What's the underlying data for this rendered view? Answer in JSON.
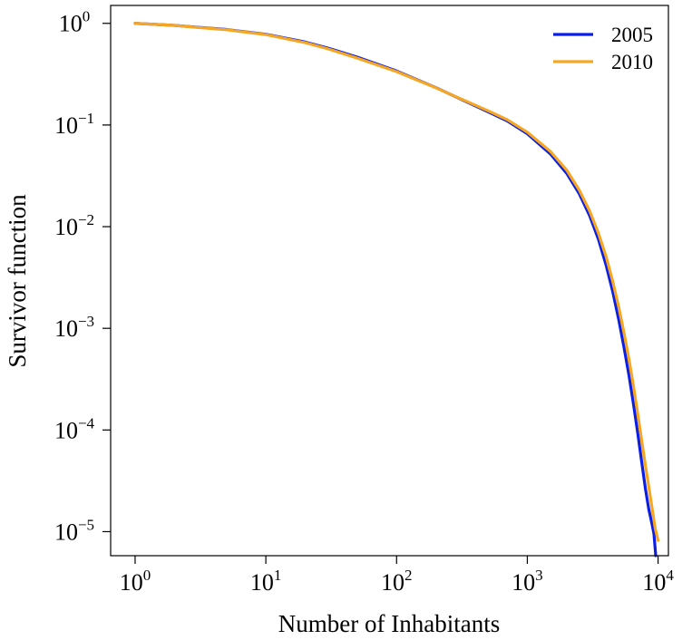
{
  "chart_data": {
    "type": "line",
    "xlabel": "Number of Inhabitants",
    "ylabel": "Survivor function",
    "x_scale": "log",
    "y_scale": "log",
    "xlim": [
      0.65,
      12000
    ],
    "ylim": [
      5.8e-06,
      1.5
    ],
    "x_ticks": [
      {
        "value": 1,
        "base": "10",
        "exp": "0"
      },
      {
        "value": 10,
        "base": "10",
        "exp": "1"
      },
      {
        "value": 100,
        "base": "10",
        "exp": "2"
      },
      {
        "value": 1000,
        "base": "10",
        "exp": "3"
      },
      {
        "value": 10000,
        "base": "10",
        "exp": "4"
      }
    ],
    "y_ticks": [
      {
        "value": 1,
        "base": "10",
        "exp": "0"
      },
      {
        "value": 0.1,
        "base": "10",
        "exp": "−1"
      },
      {
        "value": 0.01,
        "base": "10",
        "exp": "−2"
      },
      {
        "value": 0.001,
        "base": "10",
        "exp": "−3"
      },
      {
        "value": 0.0001,
        "base": "10",
        "exp": "−4"
      },
      {
        "value": 1e-05,
        "base": "10",
        "exp": "−5"
      }
    ],
    "grid": false,
    "legend_position": "top-right",
    "series": [
      {
        "name": "2005",
        "color": "#0a1ee6",
        "x": [
          1,
          2,
          3,
          5,
          10,
          20,
          30,
          50,
          100,
          200,
          300,
          500,
          700,
          1000,
          1500,
          2000,
          2500,
          3000,
          3500,
          4000,
          4500,
          5000,
          5500,
          6000,
          6500,
          7000,
          7500,
          8000,
          8500,
          9000,
          9300,
          9600
        ],
        "y": [
          1.0,
          0.955,
          0.915,
          0.87,
          0.78,
          0.655,
          0.57,
          0.465,
          0.34,
          0.233,
          0.183,
          0.135,
          0.11,
          0.082,
          0.052,
          0.0335,
          0.021,
          0.0128,
          0.0075,
          0.0042,
          0.0023,
          0.00122,
          0.00064,
          0.00034,
          0.000176,
          9.2e-05,
          4.8e-05,
          2.65e-05,
          1.65e-05,
          1.18e-05,
          9.5e-06,
          5.8e-06
        ]
      },
      {
        "name": "2010",
        "color": "#f5a623",
        "x": [
          1,
          2,
          3,
          5,
          10,
          20,
          30,
          50,
          100,
          200,
          300,
          500,
          700,
          1000,
          1500,
          2000,
          2500,
          3000,
          3500,
          4000,
          4500,
          5000,
          5500,
          6000,
          6500,
          7000,
          7500,
          8000,
          8500,
          9000,
          9500,
          10000
        ],
        "y": [
          1.0,
          0.955,
          0.91,
          0.865,
          0.775,
          0.645,
          0.56,
          0.455,
          0.335,
          0.232,
          0.184,
          0.138,
          0.113,
          0.085,
          0.055,
          0.036,
          0.0228,
          0.0142,
          0.0086,
          0.0051,
          0.0029,
          0.00162,
          0.00089,
          0.00049,
          0.000265,
          0.000142,
          7.8e-05,
          4.5e-05,
          2.75e-05,
          1.7e-05,
          1.08e-05,
          8.2e-06
        ]
      }
    ]
  }
}
